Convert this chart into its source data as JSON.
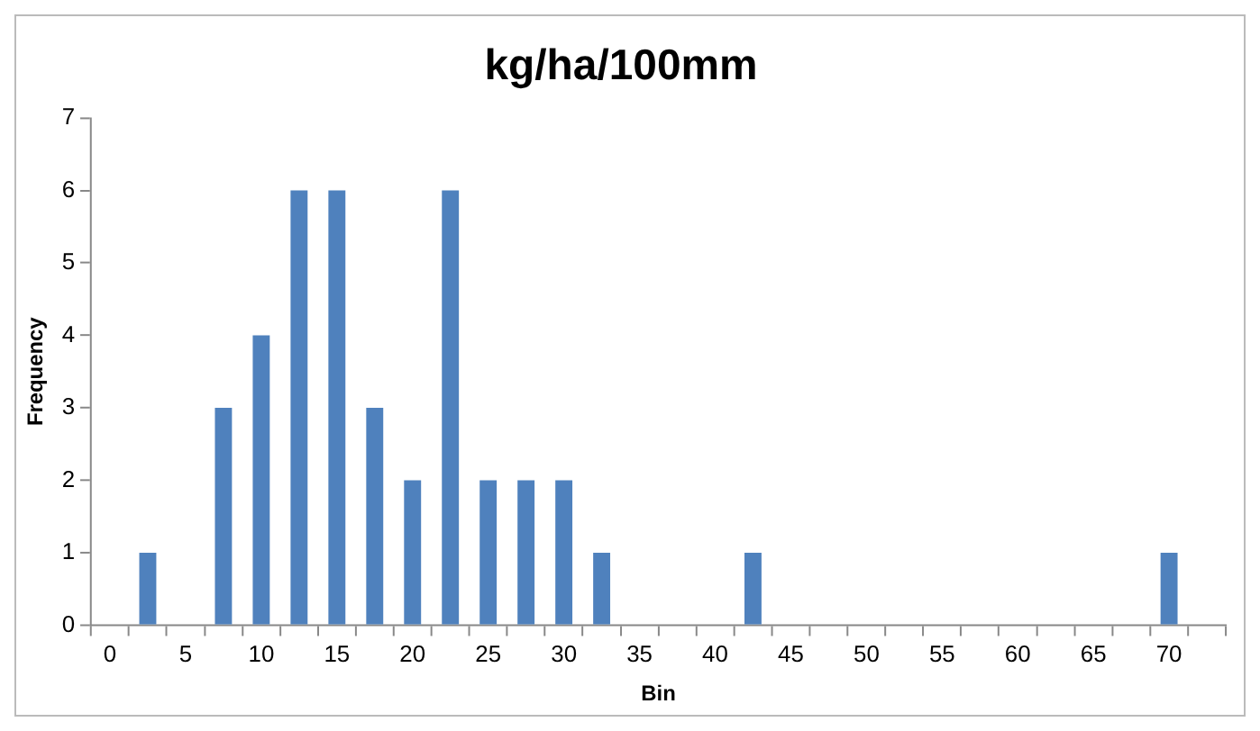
{
  "chart_data": {
    "type": "bar",
    "title": "kg/ha/100mm",
    "xlabel": "Bin",
    "ylabel": "Frequency",
    "categories": [
      "0",
      null,
      "5",
      null,
      "10",
      null,
      "15",
      null,
      "20",
      null,
      "25",
      null,
      "30",
      null,
      "35",
      null,
      "40",
      null,
      "45",
      null,
      "50",
      null,
      "55",
      null,
      "60",
      null,
      "65",
      null,
      "70",
      null
    ],
    "values": [
      0,
      1,
      0,
      3,
      4,
      6,
      6,
      3,
      2,
      6,
      2,
      2,
      2,
      1,
      0,
      0,
      0,
      1,
      0,
      0,
      0,
      0,
      0,
      0,
      0,
      0,
      0,
      0,
      1,
      0
    ],
    "color": "#4f81bd",
    "ylim": [
      0,
      7
    ],
    "yticks": [
      0,
      1,
      2,
      3,
      4,
      5,
      6,
      7
    ],
    "grid": false,
    "legend": false
  }
}
